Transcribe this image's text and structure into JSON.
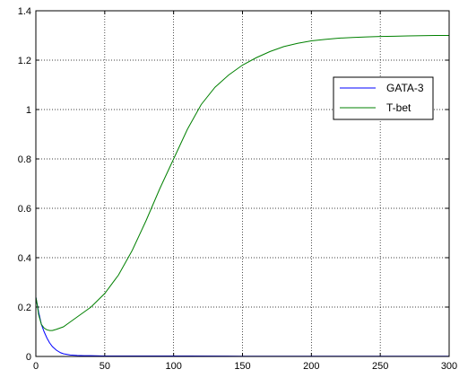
{
  "chart_data": {
    "type": "line",
    "title": "",
    "xlabel": "",
    "ylabel": "",
    "xlim": [
      0,
      300
    ],
    "ylim": [
      0,
      1.4
    ],
    "xticks": [
      0,
      50,
      100,
      150,
      200,
      250,
      300
    ],
    "xtick_labels": [
      "0",
      "50",
      "100",
      "150",
      "200",
      "250",
      "300"
    ],
    "yticks": [
      0,
      0.2,
      0.4,
      0.6,
      0.8,
      1.0,
      1.2,
      1.4
    ],
    "ytick_labels": [
      "0",
      "0.2",
      "0.4",
      "0.6",
      "0.8",
      "1",
      "1.2",
      "1.4"
    ],
    "grid": true,
    "legend_position": "top-right",
    "series": [
      {
        "name": "GATA-3",
        "color": "#0000ff",
        "x": [
          0,
          1,
          2,
          4,
          6,
          8,
          10,
          12,
          15,
          18,
          20,
          25,
          30,
          35,
          40,
          50,
          60,
          80,
          100,
          110,
          150,
          200,
          250,
          300
        ],
        "y": [
          0.24,
          0.21,
          0.18,
          0.13,
          0.1,
          0.075,
          0.055,
          0.04,
          0.025,
          0.015,
          0.011,
          0.006,
          0.004,
          0.003,
          0.003,
          0.002,
          0.002,
          0.002,
          0.002,
          0.002,
          0.001,
          0.001,
          0.001,
          0.001
        ]
      },
      {
        "name": "T-bet",
        "color": "#008000",
        "x": [
          0,
          1,
          2,
          4,
          6,
          8,
          10,
          12,
          15,
          20,
          25,
          30,
          40,
          50,
          60,
          70,
          80,
          90,
          100,
          110,
          120,
          130,
          140,
          150,
          160,
          170,
          180,
          190,
          200,
          210,
          220,
          230,
          240,
          250,
          260,
          270,
          280,
          290,
          300
        ],
        "y": [
          0.24,
          0.21,
          0.17,
          0.13,
          0.115,
          0.108,
          0.105,
          0.105,
          0.11,
          0.12,
          0.14,
          0.16,
          0.2,
          0.255,
          0.33,
          0.43,
          0.55,
          0.68,
          0.8,
          0.92,
          1.02,
          1.09,
          1.14,
          1.18,
          1.21,
          1.235,
          1.255,
          1.268,
          1.278,
          1.284,
          1.289,
          1.292,
          1.294,
          1.296,
          1.297,
          1.298,
          1.299,
          1.3,
          1.3
        ]
      }
    ]
  }
}
